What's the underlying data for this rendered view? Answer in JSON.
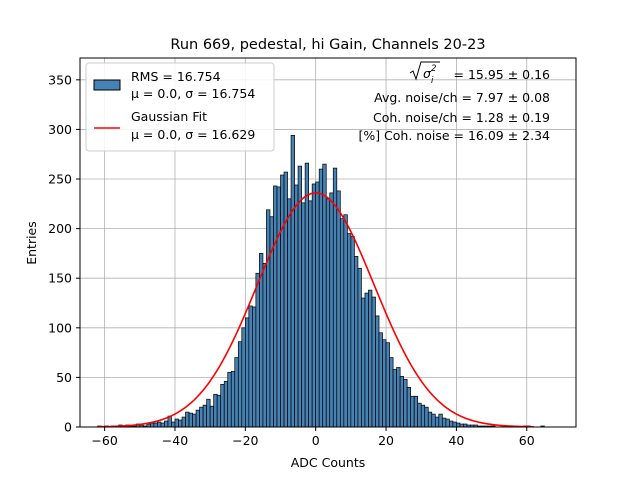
{
  "chart_data": {
    "type": "bar",
    "title": "Run 669, pedestal, hi Gain, Channels 20-23",
    "xlabel": "ADC Counts",
    "ylabel": "Entries",
    "xlim": [
      -67,
      74
    ],
    "ylim": [
      0,
      372
    ],
    "xticks": [
      -60,
      -40,
      -20,
      0,
      20,
      40,
      60
    ],
    "yticks": [
      0,
      50,
      100,
      150,
      200,
      250,
      300,
      350
    ],
    "grid": true,
    "legend_placement": "top-left",
    "histogram": {
      "name": "RMS = 16.754",
      "stats": "μ = 0.0, σ = 16.754",
      "color": "#4682b4",
      "edgecolor": "#000000",
      "bin_start": -62,
      "bin_width": 1,
      "counts": [
        1,
        0,
        1,
        0,
        1,
        0,
        2,
        1,
        2,
        1,
        1,
        3,
        2,
        1,
        3,
        4,
        4,
        5,
        4,
        6,
        11,
        5,
        8,
        7,
        10,
        15,
        14,
        13,
        17,
        20,
        22,
        28,
        21,
        33,
        32,
        43,
        46,
        55,
        56,
        70,
        86,
        100,
        110,
        122,
        121,
        155,
        175,
        165,
        219,
        212,
        243,
        242,
        254,
        257,
        230,
        294,
        244,
        263,
        226,
        266,
        228,
        245,
        247,
        260,
        265,
        230,
        236,
        261,
        238,
        210,
        214,
        195,
        192,
        172,
        160,
        130,
        135,
        138,
        131,
        112,
        95,
        88,
        85,
        70,
        58,
        60,
        51,
        48,
        40,
        31,
        31,
        24,
        22,
        20,
        15,
        13,
        10,
        13,
        9,
        8,
        6,
        5,
        4,
        3,
        3,
        2,
        2,
        2,
        1,
        1,
        1,
        1,
        1,
        0,
        0,
        0,
        0,
        1,
        0,
        0,
        0,
        1,
        1,
        0,
        0,
        0,
        1
      ]
    },
    "series": [
      {
        "name": "Gaussian Fit",
        "stats": "μ = 0.0, σ = 16.629",
        "color": "#ff0000",
        "mu": 0.0,
        "sigma": 16.629,
        "amplitude": 236,
        "x_range": [
          -62,
          62
        ]
      }
    ],
    "annotations": {
      "sigma_label": "= 15.95 ± 0.16",
      "lines": [
        "Avg. noise/ch = 7.97 ± 0.08",
        "Coh. noise/ch = 1.28 ± 0.19",
        "[%] Coh. noise = 16.09 ± 2.34"
      ]
    }
  }
}
